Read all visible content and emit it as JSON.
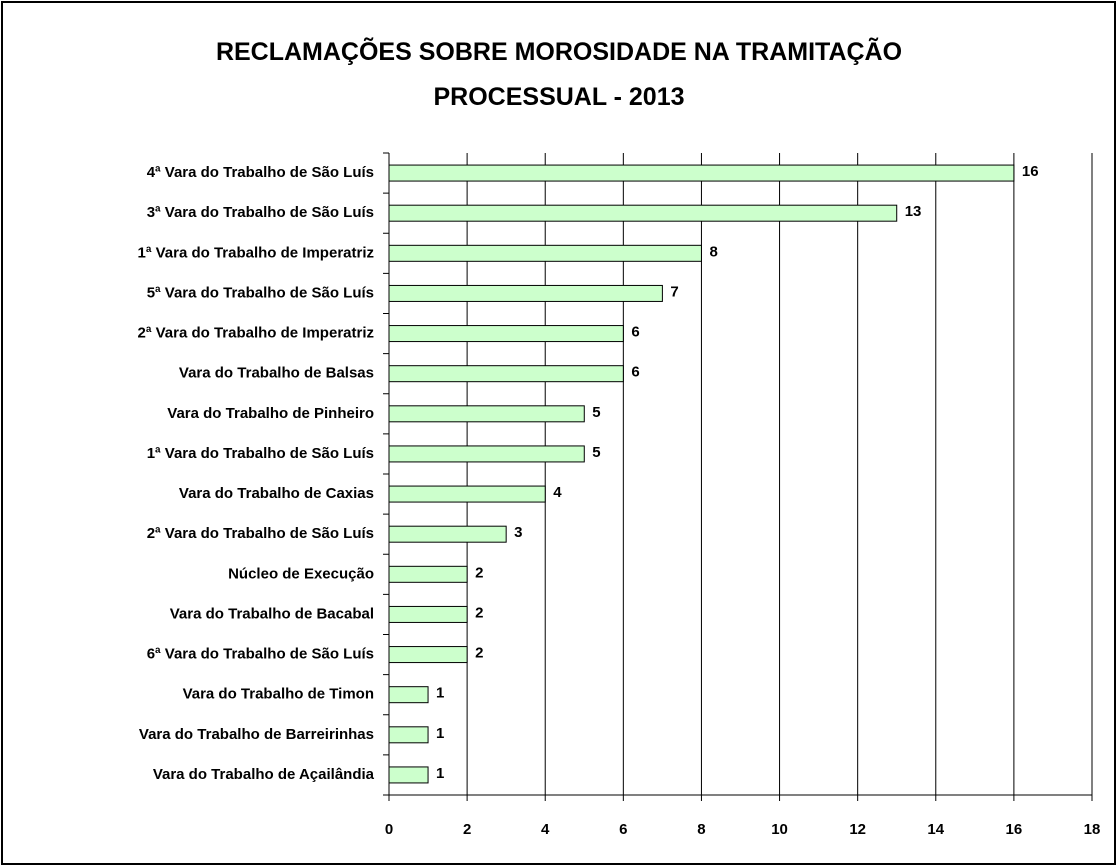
{
  "chart_data": {
    "type": "bar",
    "orientation": "horizontal",
    "title": "RECLAMAÇÕES SOBRE MOROSIDADE NA TRAMITAÇÃO PROCESSUAL - 2013",
    "categories": [
      "4ª Vara do Trabalho de São Luís",
      "3ª Vara do Trabalho de São Luís",
      "1ª Vara do Trabalho de Imperatriz",
      "5ª Vara do Trabalho de São Luís",
      "2ª Vara do Trabalho de Imperatriz",
      "Vara do Trabalho de Balsas",
      "Vara do Trabalho de Pinheiro",
      "1ª Vara do Trabalho de São Luís",
      "Vara do Trabalho de Caxias",
      "2ª Vara do Trabalho de São Luís",
      "Núcleo de Execução",
      "Vara do Trabalho de Bacabal",
      "6ª Vara do Trabalho de São Luís",
      "Vara do Trabalho de Timon",
      "Vara do Trabalho de Barreirinhas",
      "Vara do Trabalho de Açailândia"
    ],
    "values": [
      16,
      13,
      8,
      7,
      6,
      6,
      5,
      5,
      4,
      3,
      2,
      2,
      2,
      1,
      1,
      1
    ],
    "color": "#ccffcc",
    "xlim": [
      0,
      18
    ],
    "xticks": [
      0,
      2,
      4,
      6,
      8,
      10,
      12,
      14,
      16,
      18
    ],
    "grid": true
  }
}
